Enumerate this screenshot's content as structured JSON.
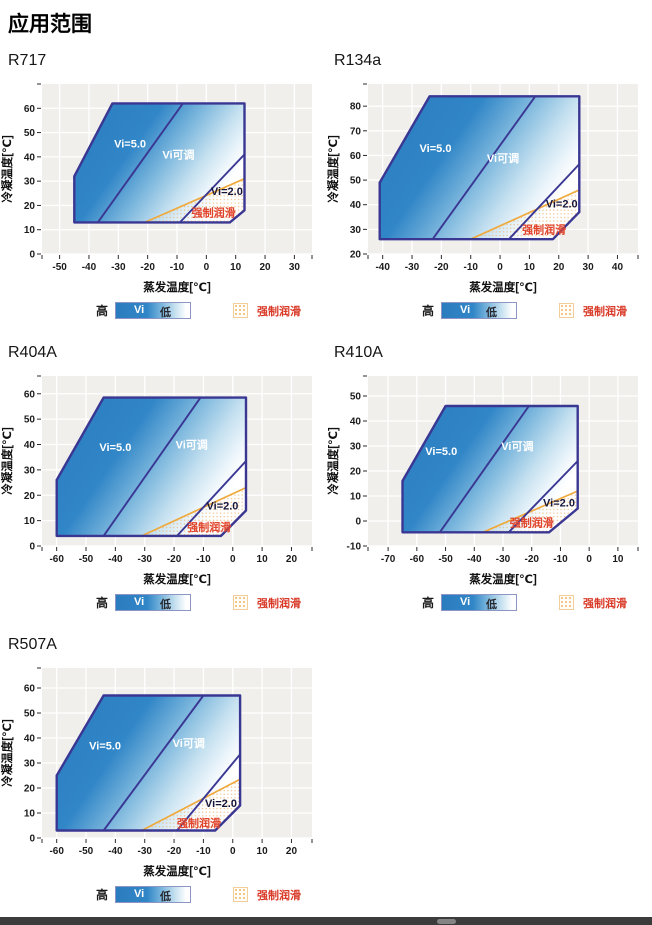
{
  "page": {
    "title": "应用范围"
  },
  "legend": {
    "high": "高",
    "vi": "Vi",
    "low": "低",
    "forced": "强制润滑"
  },
  "axis": {
    "xlabel": "蒸发温度[℃]",
    "ylabel": "冷凝温度[℃]"
  },
  "colors": {
    "envelope_stroke": "#3a3793",
    "fill_start": "#2b7cbf",
    "fill_mid": "#7cb7dd",
    "fill_light": "#c6e1f0",
    "fill_end": "#ffffff",
    "orange_line": "#efa93d",
    "forced_text": "#e0442c",
    "label_light": "#ffffff",
    "label_dark": "#16163c",
    "plot_bg": "#f0efec",
    "grid": "#ffffff",
    "tick": "#2b2b2b",
    "dot": "#efb876"
  },
  "chart_data": [
    {
      "type": "area",
      "name": "R717",
      "xlabel": "蒸发温度[℃]",
      "ylabel": "冷凝温度[℃]",
      "x_range": [
        -56,
        36
      ],
      "y_range": [
        0,
        70
      ],
      "x_ticks": [
        -50,
        -40,
        -30,
        -20,
        -10,
        0,
        10,
        20,
        30
      ],
      "y_ticks": [
        0,
        10,
        20,
        30,
        40,
        50,
        60
      ],
      "envelope": [
        [
          -45,
          13
        ],
        [
          -45,
          32
        ],
        [
          -32,
          62
        ],
        [
          13,
          62
        ],
        [
          13,
          18
        ],
        [
          8,
          13
        ]
      ],
      "vi5_boundary": [
        [
          -37,
          13
        ],
        [
          -8,
          62
        ]
      ],
      "vi2_boundary": [
        [
          -9,
          13
        ],
        [
          13,
          41
        ]
      ],
      "forced_line": [
        [
          -21,
          13
        ],
        [
          13,
          31
        ]
      ],
      "forced_region": [
        [
          -21,
          13
        ],
        [
          13,
          31
        ],
        [
          13,
          18
        ],
        [
          8,
          13
        ]
      ],
      "labels": [
        {
          "text": "Vi=5.0",
          "x": -26,
          "y": 45.5,
          "color": "light"
        },
        {
          "text": "Vi可调",
          "x": -9.5,
          "y": 41,
          "color": "light"
        },
        {
          "text": "Vi=2.0",
          "x": 7,
          "y": 26,
          "color": "dark"
        },
        {
          "text": "强制润滑",
          "x": 2.5,
          "y": 17,
          "color": "forced"
        }
      ]
    },
    {
      "type": "area",
      "name": "R134a",
      "xlabel": "蒸发温度[℃]",
      "ylabel": "冷凝温度[℃]",
      "x_range": [
        -45,
        47
      ],
      "y_range": [
        20,
        89
      ],
      "x_ticks": [
        -40,
        -30,
        -20,
        -10,
        0,
        10,
        20,
        30,
        40
      ],
      "y_ticks": [
        20,
        30,
        40,
        50,
        60,
        70,
        80
      ],
      "envelope": [
        [
          -41,
          26
        ],
        [
          -41,
          49
        ],
        [
          -24,
          84
        ],
        [
          27,
          84
        ],
        [
          27,
          37
        ],
        [
          18,
          26
        ]
      ],
      "vi5_boundary": [
        [
          -23,
          26
        ],
        [
          12,
          84
        ]
      ],
      "vi2_boundary": [
        [
          3,
          26
        ],
        [
          27,
          56.5
        ]
      ],
      "forced_line": [
        [
          -10,
          26
        ],
        [
          27,
          46
        ]
      ],
      "forced_region": [
        [
          -10,
          26
        ],
        [
          27,
          46
        ],
        [
          27,
          37
        ],
        [
          18,
          26
        ]
      ],
      "labels": [
        {
          "text": "Vi=5.0",
          "x": -22,
          "y": 63,
          "color": "light"
        },
        {
          "text": "Vi可调",
          "x": 1,
          "y": 59,
          "color": "light"
        },
        {
          "text": "Vi=2.0",
          "x": 21,
          "y": 40.5,
          "color": "dark"
        },
        {
          "text": "强制润滑",
          "x": 15,
          "y": 30,
          "color": "forced"
        }
      ]
    },
    {
      "type": "area",
      "name": "R404A",
      "xlabel": "蒸发温度[℃]",
      "ylabel": "冷凝温度[℃]",
      "x_range": [
        -65,
        27
      ],
      "y_range": [
        0,
        67
      ],
      "x_ticks": [
        -60,
        -50,
        -40,
        -30,
        -20,
        -10,
        0,
        10,
        20
      ],
      "y_ticks": [
        0,
        10,
        20,
        30,
        40,
        50,
        60
      ],
      "envelope": [
        [
          -60,
          4
        ],
        [
          -60,
          26
        ],
        [
          -44,
          58.5
        ],
        [
          4.5,
          58.5
        ],
        [
          4.5,
          14
        ],
        [
          -4,
          4
        ]
      ],
      "vi5_boundary": [
        [
          -44,
          4
        ],
        [
          -11,
          58.5
        ]
      ],
      "vi2_boundary": [
        [
          -19,
          4
        ],
        [
          4.5,
          33.5
        ]
      ],
      "forced_line": [
        [
          -31,
          4
        ],
        [
          4.5,
          23
        ]
      ],
      "forced_region": [
        [
          -31,
          4
        ],
        [
          4.5,
          23
        ],
        [
          4.5,
          14
        ],
        [
          -4,
          4
        ]
      ],
      "labels": [
        {
          "text": "Vi=5.0",
          "x": -40,
          "y": 39,
          "color": "light"
        },
        {
          "text": "Vi可调",
          "x": -14,
          "y": 40,
          "color": "light"
        },
        {
          "text": "Vi=2.0",
          "x": -3.5,
          "y": 16,
          "color": "dark"
        },
        {
          "text": "强制润滑",
          "x": -8,
          "y": 7.5,
          "color": "forced"
        }
      ]
    },
    {
      "type": "area",
      "name": "R410A",
      "xlabel": "蒸发温度[℃]",
      "ylabel": "冷凝温度[℃]",
      "x_range": [
        -77,
        17
      ],
      "y_range": [
        -10,
        58
      ],
      "x_ticks": [
        -70,
        -60,
        -50,
        -40,
        -30,
        -20,
        -10,
        0,
        10
      ],
      "y_ticks": [
        -10,
        0,
        10,
        20,
        30,
        40,
        50
      ],
      "envelope": [
        [
          -65,
          -4.5
        ],
        [
          -65,
          16
        ],
        [
          -50,
          46
        ],
        [
          -4,
          46
        ],
        [
          -4,
          5
        ],
        [
          -14,
          -4.5
        ]
      ],
      "vi5_boundary": [
        [
          -52,
          -4.5
        ],
        [
          -21,
          46
        ]
      ],
      "vi2_boundary": [
        [
          -28,
          -4.5
        ],
        [
          -4,
          24
        ]
      ],
      "forced_line": [
        [
          -37,
          -4.5
        ],
        [
          -4,
          12
        ]
      ],
      "forced_region": [
        [
          -37,
          -4.5
        ],
        [
          -4,
          12
        ],
        [
          -4,
          5
        ],
        [
          -14,
          -4.5
        ]
      ],
      "labels": [
        {
          "text": "Vi=5.0",
          "x": -51.5,
          "y": 28,
          "color": "light"
        },
        {
          "text": "Vi可调",
          "x": -25,
          "y": 30,
          "color": "light"
        },
        {
          "text": "Vi=2.0",
          "x": -10.5,
          "y": 7.5,
          "color": "dark"
        },
        {
          "text": "强制润滑",
          "x": -20,
          "y": -0.5,
          "color": "forced"
        }
      ]
    },
    {
      "type": "area",
      "name": "R507A",
      "xlabel": "蒸发温度[℃]",
      "ylabel": "冷凝温度[℃]",
      "x_range": [
        -65,
        27
      ],
      "y_range": [
        0,
        68
      ],
      "x_ticks": [
        -60,
        -50,
        -40,
        -30,
        -20,
        -10,
        0,
        10,
        20
      ],
      "y_ticks": [
        0,
        10,
        20,
        30,
        40,
        50,
        60
      ],
      "envelope": [
        [
          -60,
          3
        ],
        [
          -60,
          25
        ],
        [
          -44,
          57
        ],
        [
          2.5,
          57
        ],
        [
          2.5,
          13
        ],
        [
          -6,
          3
        ]
      ],
      "vi5_boundary": [
        [
          -44,
          3
        ],
        [
          -10,
          57
        ]
      ],
      "vi2_boundary": [
        [
          -19,
          3
        ],
        [
          2.5,
          33.5
        ]
      ],
      "forced_line": [
        [
          -31,
          3
        ],
        [
          2.5,
          23.5
        ]
      ],
      "forced_region": [
        [
          -31,
          3
        ],
        [
          2.5,
          23.5
        ],
        [
          2.5,
          13
        ],
        [
          -6,
          3
        ]
      ],
      "labels": [
        {
          "text": "Vi=5.0",
          "x": -43.5,
          "y": 37,
          "color": "light"
        },
        {
          "text": "Vi可调",
          "x": -15,
          "y": 38,
          "color": "light"
        },
        {
          "text": "Vi=2.0",
          "x": -4,
          "y": 14,
          "color": "dark"
        },
        {
          "text": "强制润滑",
          "x": -11.5,
          "y": 6,
          "color": "forced"
        }
      ]
    }
  ]
}
